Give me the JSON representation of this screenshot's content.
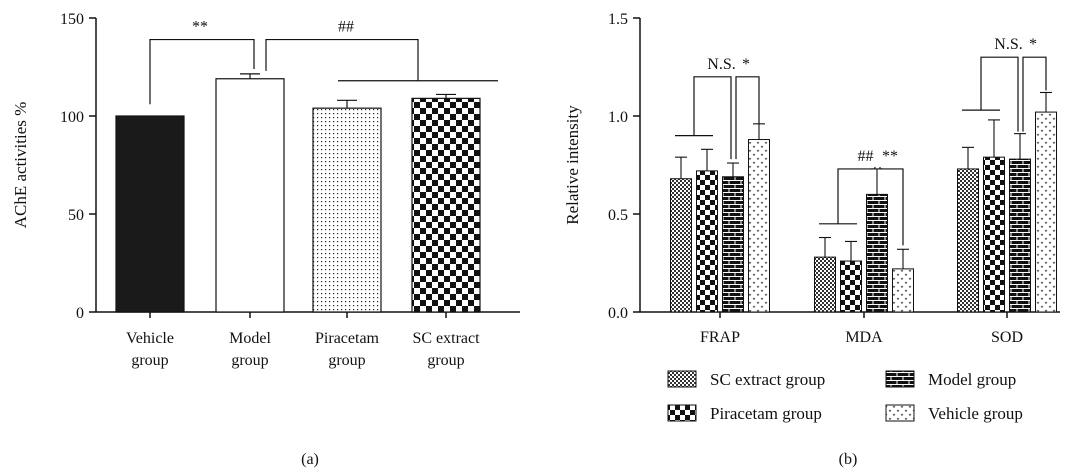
{
  "chart_data": [
    {
      "id": "a",
      "type": "bar",
      "panel_label": "(a)",
      "ylabel": "AChE activities %",
      "ylim": [
        0,
        150
      ],
      "yticks": [
        0,
        50,
        100,
        150
      ],
      "categories": [
        {
          "line1": "Vehicle",
          "line2": "group"
        },
        {
          "line1": "Model",
          "line2": "group"
        },
        {
          "line1": "Piracetam",
          "line2": "group"
        },
        {
          "line1": "SC extract",
          "line2": "group"
        }
      ],
      "values": [
        100,
        119,
        104,
        109
      ],
      "errors": [
        0,
        2.5,
        4,
        2
      ],
      "patterns": [
        "solid",
        "white",
        "dots",
        "checker"
      ],
      "annotations": [
        {
          "label": "**",
          "between": [
            0,
            1
          ]
        },
        {
          "label": "##",
          "between": [
            1,
            "2-3"
          ]
        }
      ]
    },
    {
      "id": "b",
      "type": "bar",
      "panel_label": "(b)",
      "ylabel": "Relative intensity",
      "ylim": [
        0,
        1.5
      ],
      "yticks": [
        "0.0",
        "0.5",
        "1.0",
        "1.5"
      ],
      "categories": [
        "FRAP",
        "MDA",
        "SOD"
      ],
      "series": [
        {
          "name": "SC extract group",
          "pattern": "smallcheck",
          "values": [
            0.68,
            0.28,
            0.73
          ],
          "errors": [
            0.11,
            0.1,
            0.11
          ]
        },
        {
          "name": "Piracetam group",
          "pattern": "bigcheck",
          "values": [
            0.72,
            0.26,
            0.79
          ],
          "errors": [
            0.11,
            0.1,
            0.19
          ]
        },
        {
          "name": "Model group",
          "pattern": "brick",
          "values": [
            0.69,
            0.6,
            0.78
          ],
          "errors": [
            0.07,
            0.13,
            0.13
          ]
        },
        {
          "name": "Vehicle group",
          "pattern": "vdots",
          "values": [
            0.88,
            0.22,
            1.02
          ],
          "errors": [
            0.08,
            0.1,
            0.1
          ]
        }
      ],
      "annotations": [
        {
          "category": "FRAP",
          "left": "N.S.",
          "right": "*"
        },
        {
          "category": "MDA",
          "left": "##",
          "right": "**"
        },
        {
          "category": "SOD",
          "left": "N.S.",
          "right": "*"
        }
      ]
    }
  ]
}
